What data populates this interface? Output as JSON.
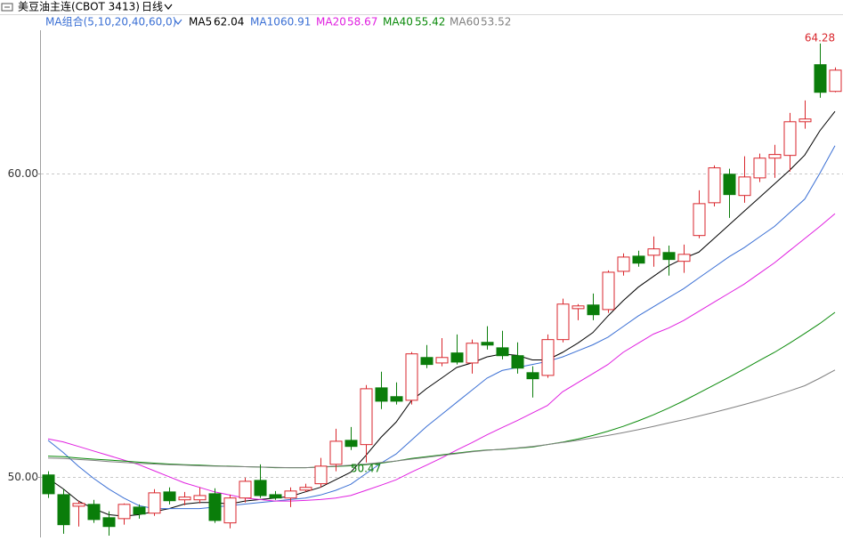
{
  "header": {
    "title": "美豆油主连(CBOT 3413)",
    "period": "日线"
  },
  "chart_data": {
    "type": "candlestick",
    "ma_group_label": "MA组合(5,10,20,40,60,0)",
    "up_color": "#d9262c",
    "down_color": "#0a7d0a",
    "ylim": [
      48.0,
      64.7
    ],
    "yticks": [
      {
        "value": 50,
        "label": "50.00"
      },
      {
        "value": 60,
        "label": "60.00"
      }
    ],
    "grid": true,
    "open": [
      50.06,
      49.41,
      49.03,
      49.09,
      48.65,
      48.62,
      49.0,
      48.8,
      49.5,
      49.24,
      49.24,
      49.44,
      48.48,
      49.3,
      49.88,
      49.41,
      49.3,
      49.56,
      49.77,
      50.41,
      51.2,
      51.06,
      52.93,
      52.64,
      52.52,
      53.93,
      53.75,
      54.08,
      53.75,
      54.43,
      54.25,
      53.99,
      53.43,
      53.34,
      54.52,
      55.54,
      55.66,
      55.51,
      56.77,
      57.27,
      57.3,
      57.39,
      57.1,
      57.95,
      59.03,
      59.97,
      59.27,
      59.85,
      60.5,
      60.59,
      61.7,
      63.58,
      62.7
    ],
    "high": [
      50.18,
      49.59,
      49.21,
      49.24,
      48.86,
      49.12,
      49.09,
      49.59,
      49.65,
      49.5,
      49.65,
      49.62,
      49.41,
      49.97,
      50.41,
      49.53,
      49.65,
      49.77,
      50.62,
      51.58,
      51.64,
      53.02,
      53.46,
      53.11,
      54.11,
      54.34,
      54.57,
      54.69,
      54.52,
      54.96,
      54.81,
      54.43,
      53.64,
      54.69,
      55.87,
      55.69,
      56.04,
      56.8,
      57.36,
      57.45,
      57.92,
      57.62,
      57.65,
      59.44,
      60.26,
      60.15,
      60.56,
      60.65,
      60.94,
      61.99,
      62.4,
      64.28,
      63.49
    ],
    "low": [
      49.3,
      48.12,
      48.36,
      48.48,
      48.06,
      48.42,
      48.62,
      48.71,
      49.09,
      49.06,
      49.12,
      48.48,
      48.3,
      49.15,
      49.3,
      49.24,
      49.0,
      49.5,
      49.65,
      50.18,
      50.88,
      50.47,
      52.23,
      52.38,
      52.38,
      53.58,
      53.64,
      53.7,
      53.4,
      54.19,
      53.87,
      53.4,
      52.61,
      53.26,
      54.43,
      55.16,
      55.16,
      55.4,
      56.63,
      56.92,
      56.92,
      56.63,
      56.72,
      57.86,
      58.91,
      58.53,
      59.03,
      59.71,
      59.85,
      60.06,
      61.47,
      62.49,
      62.67
    ],
    "close": [
      49.44,
      48.42,
      49.12,
      48.59,
      48.36,
      49.09,
      48.77,
      49.47,
      49.21,
      49.33,
      49.38,
      48.56,
      49.3,
      49.85,
      49.38,
      49.3,
      49.53,
      49.65,
      50.35,
      51.17,
      51.0,
      52.9,
      52.49,
      52.49,
      54.05,
      53.7,
      53.93,
      53.78,
      54.4,
      54.34,
      53.99,
      53.58,
      53.23,
      54.52,
      55.69,
      55.63,
      55.34,
      56.74,
      57.24,
      57.04,
      57.51,
      57.16,
      57.33,
      59.0,
      60.18,
      59.3,
      59.88,
      60.5,
      60.62,
      61.7,
      61.79,
      62.67,
      63.4
    ],
    "series": [
      {
        "name": "MA5",
        "color": "#000000",
        "values": [
          49.95,
          49.6,
          49.2,
          48.95,
          48.75,
          48.7,
          48.75,
          48.85,
          48.95,
          49.1,
          49.15,
          49.15,
          49.1,
          49.2,
          49.25,
          49.3,
          49.35,
          49.5,
          49.65,
          49.9,
          50.15,
          50.7,
          51.3,
          51.8,
          52.5,
          52.9,
          53.25,
          53.6,
          53.75,
          53.95,
          54.05,
          54.0,
          53.85,
          53.85,
          54.1,
          54.4,
          54.75,
          55.3,
          55.8,
          56.25,
          56.6,
          56.95,
          57.2,
          57.4,
          57.85,
          58.3,
          58.75,
          59.2,
          59.65,
          60.1,
          60.6,
          61.4,
          62.04
        ]
      },
      {
        "name": "MA10",
        "color": "#3a6fd4",
        "values": [
          51.2,
          50.8,
          50.35,
          49.95,
          49.6,
          49.3,
          49.05,
          48.95,
          48.95,
          48.95,
          48.95,
          49.0,
          49.05,
          49.1,
          49.15,
          49.2,
          49.25,
          49.3,
          49.4,
          49.55,
          49.75,
          50.1,
          50.45,
          50.75,
          51.2,
          51.65,
          52.05,
          52.45,
          52.85,
          53.25,
          53.5,
          53.6,
          53.7,
          53.8,
          53.95,
          54.15,
          54.35,
          54.6,
          54.95,
          55.3,
          55.6,
          55.9,
          56.2,
          56.55,
          56.9,
          57.25,
          57.55,
          57.9,
          58.25,
          58.7,
          59.15,
          60.0,
          60.91
        ]
      },
      {
        "name": "MA20",
        "color": "#e020e0",
        "values": [
          51.25,
          51.15,
          51.0,
          50.85,
          50.7,
          50.55,
          50.4,
          50.2,
          50.0,
          49.8,
          49.65,
          49.5,
          49.4,
          49.3,
          49.25,
          49.2,
          49.2,
          49.22,
          49.25,
          49.3,
          49.38,
          49.55,
          49.72,
          49.9,
          50.15,
          50.38,
          50.62,
          50.88,
          51.12,
          51.38,
          51.62,
          51.85,
          52.1,
          52.35,
          52.8,
          53.1,
          53.4,
          53.7,
          54.1,
          54.4,
          54.7,
          54.9,
          55.15,
          55.45,
          55.75,
          56.05,
          56.35,
          56.7,
          57.05,
          57.45,
          57.85,
          58.25,
          58.67
        ]
      },
      {
        "name": "MA40",
        "color": "#0a8a0a",
        "values": [
          50.68,
          50.66,
          50.62,
          50.58,
          50.55,
          50.52,
          50.48,
          50.45,
          50.42,
          50.4,
          50.38,
          50.36,
          50.35,
          50.33,
          50.32,
          50.3,
          50.3,
          50.3,
          50.32,
          50.34,
          50.36,
          50.4,
          50.45,
          50.52,
          50.6,
          50.66,
          50.72,
          50.78,
          50.84,
          50.88,
          50.9,
          50.94,
          50.98,
          51.06,
          51.14,
          51.24,
          51.36,
          51.5,
          51.66,
          51.84,
          52.04,
          52.26,
          52.5,
          52.76,
          53.02,
          53.28,
          53.55,
          53.83,
          54.1,
          54.4,
          54.72,
          55.05,
          55.42
        ]
      },
      {
        "name": "MA60",
        "color": "#808080",
        "values": [
          50.62,
          50.6,
          50.57,
          50.54,
          50.5,
          50.47,
          50.44,
          50.42,
          50.4,
          50.38,
          50.36,
          50.35,
          50.34,
          50.33,
          50.32,
          50.31,
          50.3,
          50.3,
          50.32,
          50.35,
          50.38,
          50.42,
          50.47,
          50.52,
          50.58,
          50.64,
          50.7,
          50.76,
          50.82,
          50.87,
          50.91,
          50.95,
          51.0,
          51.06,
          51.13,
          51.2,
          51.28,
          51.36,
          51.45,
          51.55,
          51.66,
          51.77,
          51.88,
          52.0,
          52.12,
          52.25,
          52.38,
          52.52,
          52.67,
          52.83,
          53.0,
          53.25,
          53.52
        ]
      }
    ]
  }
}
